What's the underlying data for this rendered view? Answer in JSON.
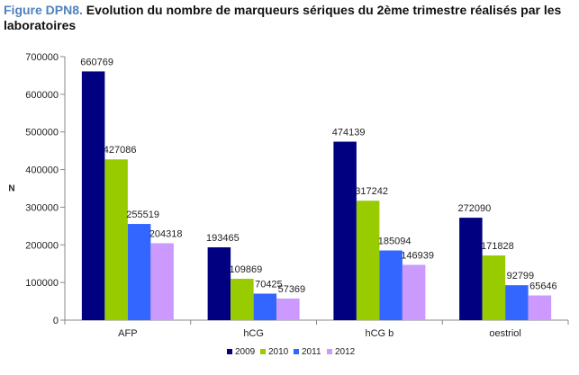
{
  "figure": {
    "label": "Figure DPN8.",
    "caption": "Evolution du nombre de marqueurs sériques du 2ème trimestre réalisés par les laboratoires"
  },
  "chart_data": {
    "type": "bar",
    "title": "",
    "xlabel": "",
    "ylabel": "N",
    "ylim": [
      0,
      700000
    ],
    "yticks": [
      0,
      100000,
      200000,
      300000,
      400000,
      500000,
      600000,
      700000
    ],
    "categories": [
      "AFP",
      "hCG",
      "hCGb",
      "oestriol"
    ],
    "category_labels": [
      "AFP",
      "hCG",
      "hCG b",
      "oestriol"
    ],
    "series": [
      {
        "name": "2009",
        "color": "#000080",
        "values": [
          660769,
          193465,
          474139,
          272090
        ]
      },
      {
        "name": "2010",
        "color": "#99cc00",
        "values": [
          427086,
          109869,
          317242,
          171828
        ]
      },
      {
        "name": "2011",
        "color": "#3366ff",
        "values": [
          255519,
          70425,
          185094,
          92799
        ]
      },
      {
        "name": "2012",
        "color": "#cc99ff",
        "values": [
          204318,
          57369,
          146939,
          65646
        ]
      }
    ],
    "grid": false,
    "legend_position": "bottom",
    "data_labels": true
  }
}
